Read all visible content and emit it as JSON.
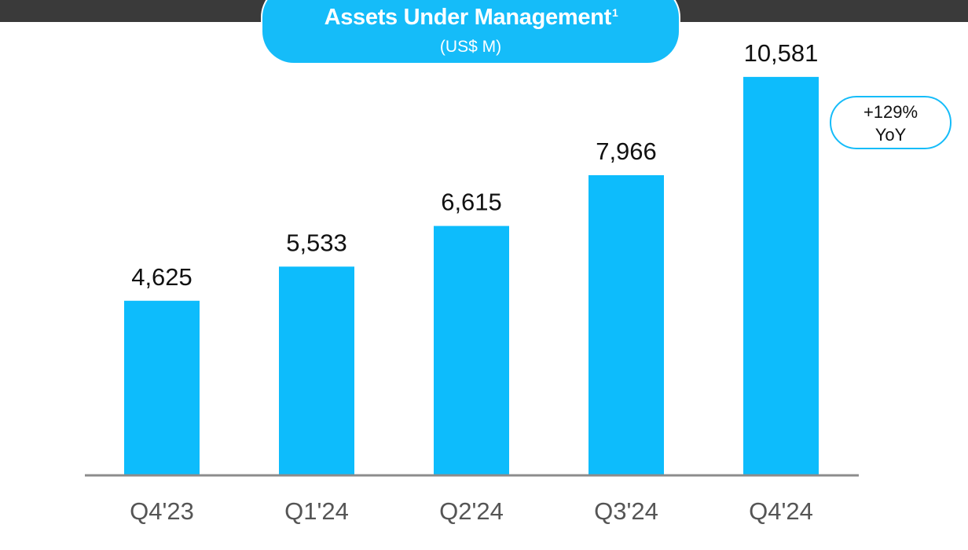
{
  "colors": {
    "bar": "#0dbcfc",
    "title_pill": "#15bcf9",
    "top_bar": "#3a3a3a",
    "axis": "#8c8c8c",
    "value_label": "#111111",
    "category_label": "#555555"
  },
  "header": {
    "title": "Assets Under Management",
    "title_footnote": "1",
    "subtitle": "(US$ M)"
  },
  "badge": {
    "line1": "+129%",
    "line2": "YoY"
  },
  "chart_data": {
    "type": "bar",
    "title": "Assets Under Management",
    "subtitle": "(US$ M)",
    "categories": [
      "Q4'23",
      "Q1'24",
      "Q2'24",
      "Q3'24",
      "Q4'24"
    ],
    "values": [
      4625,
      5533,
      6615,
      7966,
      10581
    ],
    "value_labels": [
      "4,625",
      "5,533",
      "6,615",
      "7,966",
      "10,581"
    ],
    "xlabel": "",
    "ylabel": "",
    "ylim": [
      0,
      12000
    ],
    "grid": false,
    "legend": "none",
    "annotation": "+129% YoY"
  }
}
